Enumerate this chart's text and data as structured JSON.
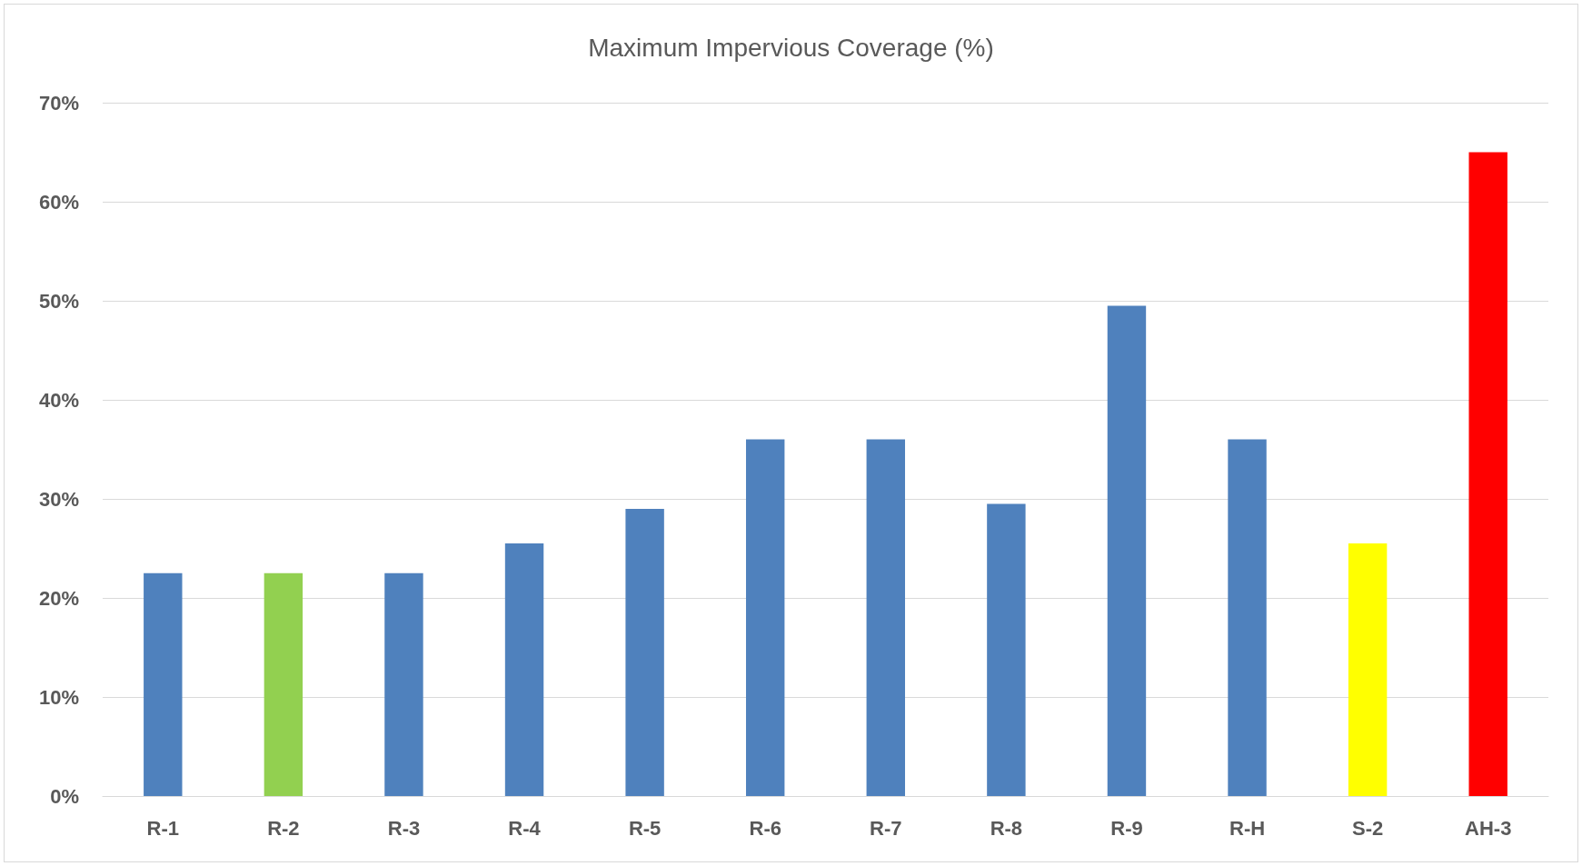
{
  "chart_data": {
    "type": "bar",
    "title": "Maximum Impervious Coverage (%)",
    "categories": [
      "R-1",
      "R-2",
      "R-3",
      "R-4",
      "R-5",
      "R-6",
      "R-7",
      "R-8",
      "R-9",
      "R-H",
      "S-2",
      "AH-3"
    ],
    "values": [
      22.5,
      22.5,
      22.5,
      25.5,
      29,
      36,
      36,
      29.5,
      49.5,
      36,
      25.5,
      65
    ],
    "colors": [
      "#4f81bd",
      "#92d050",
      "#4f81bd",
      "#4f81bd",
      "#4f81bd",
      "#4f81bd",
      "#4f81bd",
      "#4f81bd",
      "#4f81bd",
      "#4f81bd",
      "#ffff00",
      "#ff0000"
    ],
    "ylim": [
      0,
      70
    ],
    "yticks": [
      {
        "value": 0,
        "label": "0%"
      },
      {
        "value": 10,
        "label": "10%"
      },
      {
        "value": 20,
        "label": "20%"
      },
      {
        "value": 30,
        "label": "30%"
      },
      {
        "value": 40,
        "label": "40%"
      },
      {
        "value": 50,
        "label": "50%"
      },
      {
        "value": 60,
        "label": "60%"
      },
      {
        "value": 70,
        "label": "70%"
      }
    ],
    "grid": "y"
  }
}
